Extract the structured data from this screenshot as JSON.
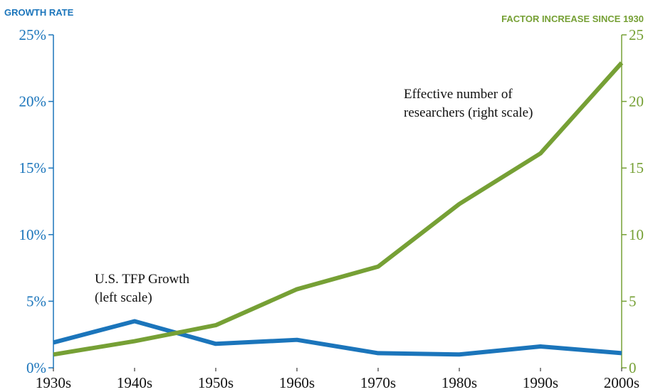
{
  "chart_data": {
    "type": "line",
    "left_axis_title": "GROWTH RATE",
    "right_axis_title": "FACTOR INCREASE SINCE 1930",
    "categories": [
      "1930s",
      "1940s",
      "1950s",
      "1960s",
      "1970s",
      "1980s",
      "1990s",
      "2000s"
    ],
    "series": [
      {
        "name": "U.S. TFP Growth",
        "color": "#1b75bb",
        "values": [
          1.9,
          3.5,
          1.8,
          2.1,
          1.1,
          1.0,
          1.6,
          1.1
        ]
      },
      {
        "name": "Effective number of researchers",
        "color": "#76a035",
        "axis": "y2",
        "values": [
          1.0,
          2.0,
          3.2,
          5.9,
          7.6,
          12.3,
          16.1,
          22.9
        ]
      }
    ],
    "ylim": [
      0,
      25
    ],
    "yticks": [
      {
        "value": 0,
        "label": "0%"
      },
      {
        "value": 5,
        "label": "5%"
      },
      {
        "value": 10,
        "label": "10%"
      },
      {
        "value": 15,
        "label": "15%"
      },
      {
        "value": 20,
        "label": "20%"
      },
      {
        "value": 25,
        "label": "25%"
      }
    ],
    "y2lim": [
      0,
      25
    ],
    "y2ticks": [
      0,
      5,
      10,
      15,
      20,
      25
    ],
    "annotations": [
      {
        "lines": [
          "U.S. TFP Growth",
          "(left scale)"
        ]
      },
      {
        "lines": [
          "Effective number of",
          "researchers (right scale)"
        ]
      }
    ],
    "grid": false
  }
}
